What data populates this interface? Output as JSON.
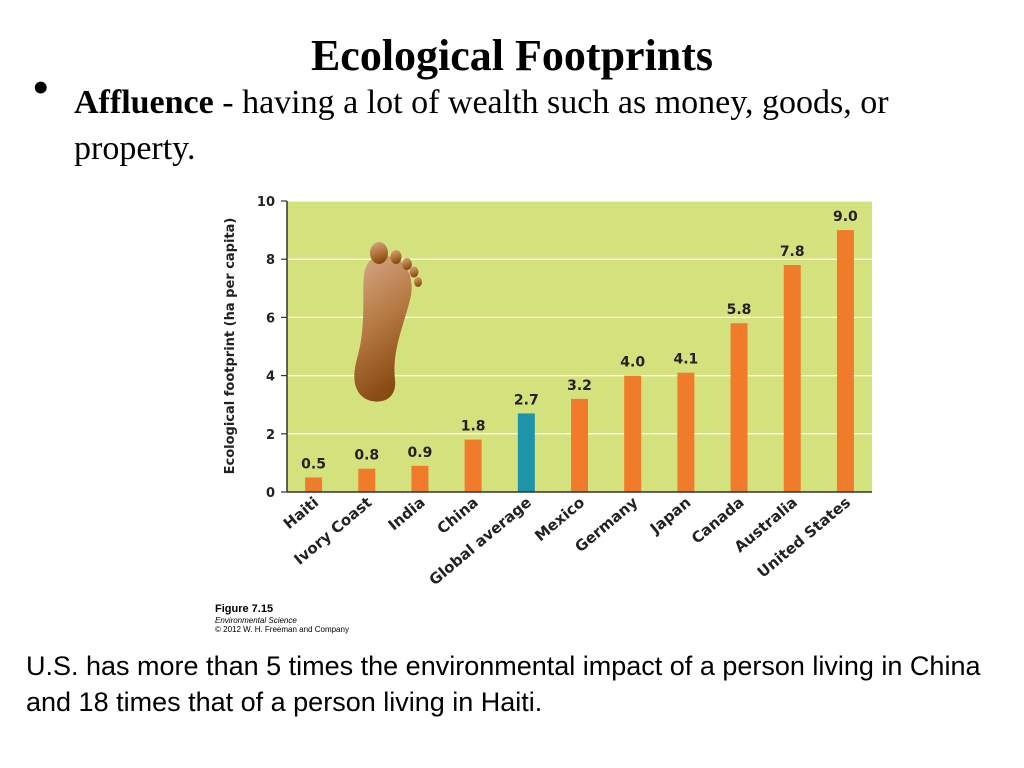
{
  "slide": {
    "title": "Ecological Footprints",
    "bullet_symbol": "•",
    "bullet_term": "Affluence",
    "bullet_definition": " - having a lot of wealth such as money, goods, or property.",
    "caption": "U.S. has more than 5 times the environmental impact of a person living in China and 18 times that of a person living in Haiti."
  },
  "figure_credit": {
    "number": "Figure 7.15",
    "book": "Environmental Science",
    "copyright": "© 2012 W. H. Freeman and Company"
  },
  "chart_data": {
    "type": "bar",
    "ylabel": "Ecological footprint (ha per capita)",
    "ylim": [
      0,
      10
    ],
    "yticks": [
      0,
      2,
      4,
      6,
      8,
      10
    ],
    "grid": true,
    "categories": [
      "Haiti",
      "Ivory Coast",
      "India",
      "China",
      "Global average",
      "Mexico",
      "Germany",
      "Japan",
      "Canada",
      "Australia",
      "United States"
    ],
    "values": [
      0.5,
      0.8,
      0.9,
      1.8,
      2.7,
      3.2,
      4.0,
      4.1,
      5.8,
      7.8,
      9.0
    ],
    "value_labels": [
      "0.5",
      "0.8",
      "0.9",
      "1.8",
      "2.7",
      "3.2",
      "4.0",
      "4.1",
      "5.8",
      "7.8",
      "9.0"
    ],
    "bar_colors": [
      "#f07c2b",
      "#f07c2b",
      "#f07c2b",
      "#f07c2b",
      "#1f93a8",
      "#f07c2b",
      "#f07c2b",
      "#f07c2b",
      "#f07c2b",
      "#f07c2b",
      "#f07c2b"
    ],
    "plot_background": "#d4e27e",
    "footprint_icon": "footprint-icon"
  }
}
